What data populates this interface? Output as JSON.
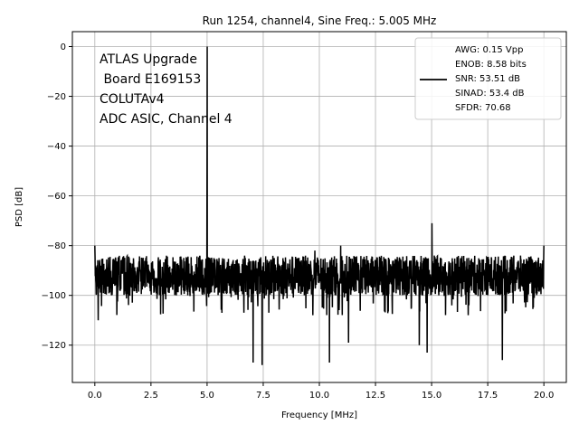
{
  "chart_data": {
    "type": "line",
    "title": "Run 1254, channel4, Sine Freq.: 5.005 MHz",
    "xlabel": "Frequency [MHz]",
    "ylabel": "PSD [dB]",
    "xlim": [
      -1.0,
      21.0
    ],
    "ylim": [
      -135,
      6
    ],
    "xticks": [
      0.0,
      2.5,
      5.0,
      7.5,
      10.0,
      12.5,
      15.0,
      17.5,
      20.0
    ],
    "xtick_labels": [
      "0.0",
      "2.5",
      "5.0",
      "7.5",
      "10.0",
      "12.5",
      "15.0",
      "17.5",
      "20.0"
    ],
    "yticks": [
      0,
      -20,
      -40,
      -60,
      -80,
      -100,
      -120
    ],
    "ytick_labels": [
      "0",
      "−20",
      "−40",
      "−60",
      "−80",
      "−100",
      "−120"
    ],
    "grid": true,
    "legend_position": "top-right",
    "color": "#000000",
    "annotation_lines": [
      "ATLAS Upgrade",
      " Board E169153",
      "COLUTAv4",
      "ADC ASIC, Channel 4"
    ],
    "legend_lines": [
      "AWG: 0.15 Vpp",
      "ENOB: 8.58 bits",
      "SNR: 53.51 dB",
      "SINAD: 53.4 dB",
      "SFDR: 70.68"
    ],
    "series": [
      {
        "noise_floor_db": -92,
        "noise_band_db": [
          -100,
          -84
        ],
        "peaks": [
          {
            "x": 0.0,
            "y": -80
          },
          {
            "x": 5.005,
            "y": 0
          },
          {
            "x": 9.8,
            "y": -82
          },
          {
            "x": 10.95,
            "y": -80
          },
          {
            "x": 15.015,
            "y": -71
          },
          {
            "x": 20.0,
            "y": -80
          }
        ],
        "dips": [
          {
            "x": 0.15,
            "y": -110
          },
          {
            "x": 7.05,
            "y": -127
          },
          {
            "x": 7.45,
            "y": -128
          },
          {
            "x": 10.45,
            "y": -127
          },
          {
            "x": 11.3,
            "y": -119
          },
          {
            "x": 14.45,
            "y": -120
          },
          {
            "x": 14.8,
            "y": -123
          },
          {
            "x": 18.15,
            "y": -126
          },
          {
            "x": 20.0,
            "y": -108
          }
        ]
      }
    ]
  }
}
